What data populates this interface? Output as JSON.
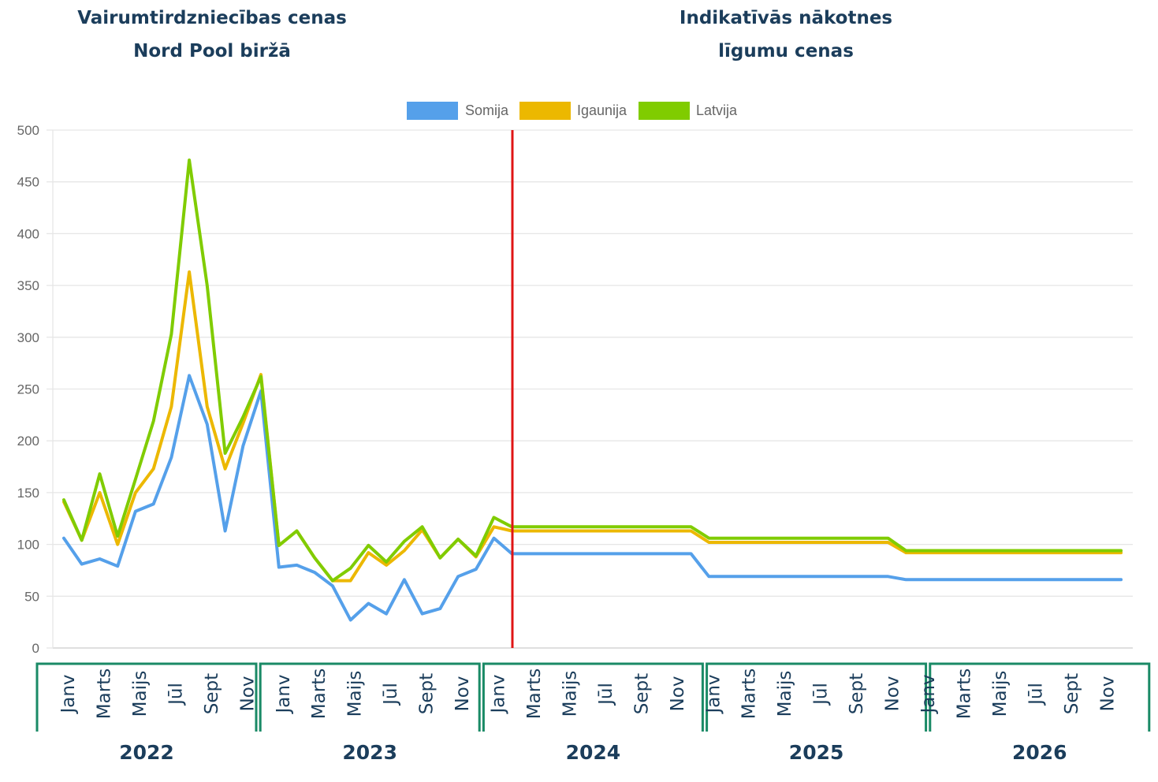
{
  "headings": {
    "left_line1": "Vairumtirdzniecības cenas",
    "left_line2": "Nord Pool biržā",
    "right_line1": "Indikatīvās nākotnes",
    "right_line2": "līgumu cenas"
  },
  "colors": {
    "somija": "#55a0ea",
    "igaunija": "#ecb800",
    "latvija": "#80cc00",
    "divider": "#e01515",
    "year_box": "#1a8a66",
    "text_dark": "#1b3d5b",
    "grid": "#e6e6e6"
  },
  "chart_data": {
    "type": "line",
    "legend_position": "top-center",
    "grid": true,
    "ylim": [
      0,
      500
    ],
    "yticks": [
      0,
      50,
      100,
      150,
      200,
      250,
      300,
      350,
      400,
      450,
      500
    ],
    "divider_at_month_index": 25,
    "years": [
      "2022",
      "2023",
      "2024",
      "2025",
      "2026"
    ],
    "month_labels": [
      "Janv",
      "Marts",
      "Maijs",
      "Jūl",
      "Sept",
      "Nov"
    ],
    "series": [
      {
        "name": "Somija",
        "color": "#55a0ea",
        "values": [
          106,
          81,
          86,
          79,
          132,
          139,
          184,
          263,
          216,
          113,
          195,
          248,
          78,
          80,
          73,
          60,
          27,
          43,
          33,
          66,
          33,
          38,
          69,
          76,
          106,
          91,
          91,
          91,
          91,
          91,
          91,
          91,
          91,
          91,
          91,
          91,
          69,
          69,
          69,
          69,
          69,
          69,
          69,
          69,
          69,
          69,
          69,
          66,
          66,
          66,
          66,
          66,
          66,
          66,
          66,
          66,
          66,
          66,
          66,
          66
        ]
      },
      {
        "name": "Igaunija",
        "color": "#ecb800",
        "values": [
          141,
          104,
          150,
          100,
          150,
          173,
          233,
          363,
          233,
          173,
          217,
          264,
          99,
          113,
          87,
          65,
          65,
          92,
          80,
          94,
          114,
          87,
          105,
          88,
          117,
          113,
          113,
          113,
          113,
          113,
          113,
          113,
          113,
          113,
          113,
          113,
          102,
          102,
          102,
          102,
          102,
          102,
          102,
          102,
          102,
          102,
          102,
          92,
          92,
          92,
          92,
          92,
          92,
          92,
          92,
          92,
          92,
          92,
          92,
          92
        ]
      },
      {
        "name": "Latvija",
        "color": "#80cc00",
        "values": [
          143,
          104,
          168,
          108,
          163,
          219,
          303,
          471,
          350,
          188,
          223,
          262,
          99,
          113,
          87,
          65,
          77,
          99,
          83,
          103,
          117,
          87,
          105,
          89,
          126,
          117,
          117,
          117,
          117,
          117,
          117,
          117,
          117,
          117,
          117,
          117,
          106,
          106,
          106,
          106,
          106,
          106,
          106,
          106,
          106,
          106,
          106,
          94,
          94,
          94,
          94,
          94,
          94,
          94,
          94,
          94,
          94,
          94,
          94,
          94
        ]
      }
    ]
  }
}
